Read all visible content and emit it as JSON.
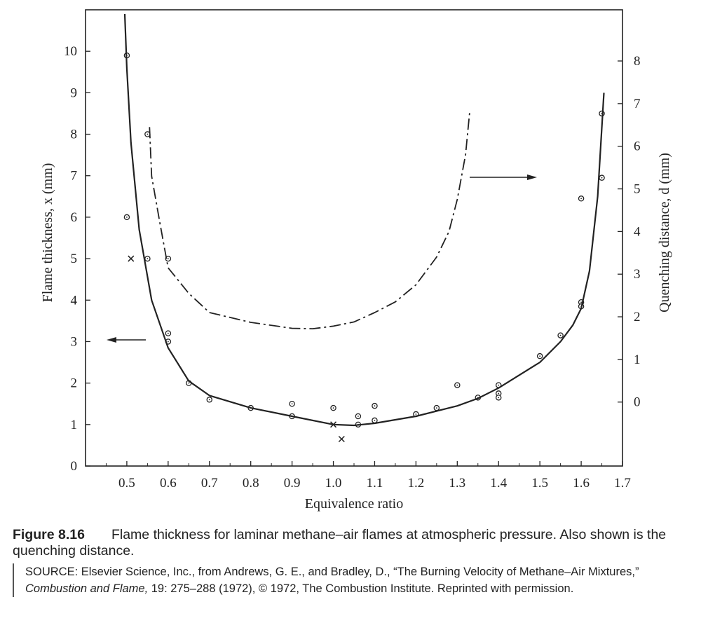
{
  "chart_data": {
    "type": "scatter",
    "xlabel": "Equivalence ratio",
    "ylabel_left": "Flame thickness, x (mm)",
    "ylabel_right": "Quenching distance, d (mm)",
    "xlim": [
      0.4,
      1.7
    ],
    "ylim_left": [
      0,
      11
    ],
    "ylim_right": [
      -1.5,
      9.2
    ],
    "x_ticks": [
      "0.5",
      "0.6",
      "0.7",
      "0.8",
      "0.9",
      "1.0",
      "1.1",
      "1.2",
      "1.3",
      "1.4",
      "1.5",
      "1.6",
      "1.7"
    ],
    "y_ticks_left": [
      "0",
      "1",
      "2",
      "3",
      "4",
      "5",
      "6",
      "7",
      "8",
      "9",
      "10"
    ],
    "y_ticks_right": [
      "0",
      "1",
      "2",
      "3",
      "4",
      "5",
      "6",
      "7",
      "8"
    ],
    "series": [
      {
        "marker": "circle",
        "axis": "left",
        "x": [
          0.5,
          0.5,
          0.55,
          0.55,
          0.6,
          0.6,
          0.6,
          0.65,
          0.7,
          0.8,
          0.9,
          0.9,
          1.0,
          1.06,
          1.06,
          1.1,
          1.1,
          1.2,
          1.25,
          1.3,
          1.35,
          1.4,
          1.4,
          1.4,
          1.5,
          1.55,
          1.6,
          1.6,
          1.6,
          1.65,
          1.65
        ],
        "y": [
          9.9,
          6.0,
          8.0,
          5.0,
          5.0,
          3.2,
          3.0,
          2.0,
          1.6,
          1.4,
          1.5,
          1.2,
          1.4,
          1.2,
          1.0,
          1.45,
          1.1,
          1.25,
          1.4,
          1.95,
          1.65,
          1.95,
          1.75,
          1.65,
          2.65,
          3.15,
          6.45,
          3.95,
          3.85,
          8.5,
          6.95
        ]
      },
      {
        "marker": "x",
        "axis": "left",
        "x": [
          0.51,
          1.0,
          1.02
        ],
        "y": [
          5.0,
          1.0,
          0.65
        ]
      },
      {
        "style": "solid",
        "axis": "left",
        "x": [
          0.495,
          0.5,
          0.51,
          0.53,
          0.56,
          0.6,
          0.65,
          0.7,
          0.8,
          0.9,
          1.0,
          1.05,
          1.1,
          1.2,
          1.3,
          1.35,
          1.4,
          1.5,
          1.55,
          1.58,
          1.6,
          1.62,
          1.64,
          1.655
        ],
        "y": [
          10.9,
          9.6,
          7.8,
          5.7,
          4.0,
          2.85,
          2.05,
          1.7,
          1.4,
          1.2,
          1.0,
          0.98,
          1.03,
          1.2,
          1.45,
          1.63,
          1.88,
          2.5,
          3.0,
          3.4,
          3.8,
          4.7,
          6.5,
          9.0
        ]
      },
      {
        "style": "dash-dot",
        "axis": "right",
        "x": [
          0.555,
          0.56,
          0.58,
          0.6,
          0.65,
          0.7,
          0.8,
          0.9,
          0.95,
          1.0,
          1.05,
          1.1,
          1.15,
          1.2,
          1.25,
          1.28,
          1.3,
          1.32,
          1.33
        ],
        "y": [
          6.45,
          5.3,
          4.2,
          3.15,
          2.55,
          2.1,
          1.87,
          1.73,
          1.72,
          1.78,
          1.88,
          2.1,
          2.35,
          2.75,
          3.4,
          4.0,
          4.75,
          5.8,
          6.8
        ]
      }
    ],
    "annotations": [
      "left arrow → left axis",
      "right arrow → right axis"
    ]
  },
  "caption": {
    "label": "Figure 8.16",
    "text": "Flame thickness for laminar methane–air flames at atmospheric pressure. Also shown is the quenching distance.",
    "source_pre": "SOURCE: Elsevier Science, Inc., from Andrews, G. E., and Bradley, D., “The Burning Velocity of Methane–Air Mixtures,” ",
    "source_journal": "Combustion and Flame,",
    "source_post": " 19: 275–288 (1972), © 1972, The Combustion Institute. Reprinted with permission."
  },
  "colors": {
    "ink": "#222222",
    "background": "#ffffff"
  }
}
